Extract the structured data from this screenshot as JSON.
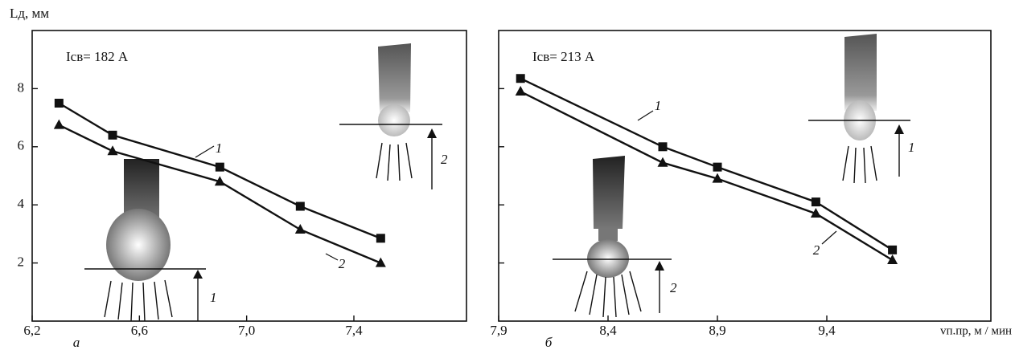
{
  "chart_data": [
    {
      "type": "line",
      "y_label": "Lд, мм",
      "annotation": "Iсв= 182 А",
      "panel_label": "а",
      "xlim": [
        6.2,
        7.82
      ],
      "ylim": [
        0,
        10
      ],
      "xticks": [
        {
          "value": 6.2,
          "label": "6,2"
        },
        {
          "value": 6.6,
          "label": "6,6"
        },
        {
          "value": 7.0,
          "label": "7,0"
        },
        {
          "value": 7.4,
          "label": "7,4"
        }
      ],
      "yticks": [
        2,
        4,
        6,
        8
      ],
      "series": [
        {
          "name": "1",
          "color": "#111111",
          "marker": "square",
          "x": [
            6.3,
            6.5,
            6.9,
            7.2,
            7.5
          ],
          "values": [
            7.5,
            6.4,
            5.3,
            3.95,
            2.85
          ]
        },
        {
          "name": "2",
          "color": "#111111",
          "marker": "triangle",
          "x": [
            6.3,
            6.5,
            6.9,
            7.2,
            7.5
          ],
          "values": [
            6.75,
            5.85,
            4.8,
            3.15,
            2.0
          ]
        }
      ]
    },
    {
      "type": "line",
      "x_label": "vп.пр, м / мин",
      "annotation": "Iсв= 213 А",
      "panel_label": "б",
      "xlim": [
        7.9,
        10.15
      ],
      "ylim": [
        0,
        10
      ],
      "xticks": [
        {
          "value": 7.9,
          "label": "7,9"
        },
        {
          "value": 8.4,
          "label": "8,4"
        },
        {
          "value": 8.9,
          "label": "8,9"
        },
        {
          "value": 9.4,
          "label": "9,4"
        }
      ],
      "yticks": [
        2,
        4,
        6,
        8
      ],
      "series": [
        {
          "name": "1",
          "color": "#111111",
          "marker": "square",
          "x": [
            8.0,
            8.65,
            8.9,
            9.35,
            9.7
          ],
          "values": [
            8.35,
            6.0,
            5.3,
            4.1,
            2.45
          ]
        },
        {
          "name": "2",
          "color": "#111111",
          "marker": "triangle",
          "x": [
            8.0,
            8.65,
            8.9,
            9.35,
            9.7
          ],
          "values": [
            7.9,
            5.45,
            4.9,
            3.7,
            2.1
          ]
        }
      ]
    }
  ]
}
